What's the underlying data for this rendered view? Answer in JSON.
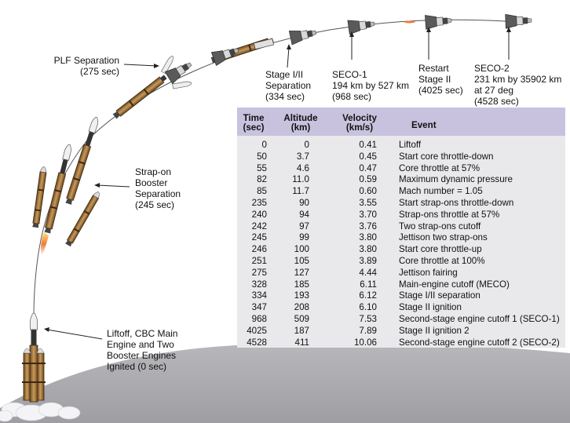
{
  "labels": {
    "plf_separation": [
      "PLF Separation",
      "(275 sec)"
    ],
    "booster_separation": [
      "Strap-on",
      "Booster",
      "Separation",
      "(245 sec)"
    ],
    "liftoff": [
      "Liftoff, CBC Main",
      "Engine and Two",
      "Booster Engines",
      "Ignited (0 sec)"
    ],
    "stage_separation": [
      "Stage I/II",
      "Separation",
      "(334 sec)"
    ],
    "seco1": [
      "SECO-1",
      "194 km by 527 km",
      "(968 sec)"
    ],
    "restart": [
      "Restart",
      "Stage II",
      "(4025 sec)"
    ],
    "seco2": [
      "SECO-2",
      "231 km by 35902 km",
      "at 27 deg",
      "(4528 sec)"
    ]
  },
  "table": {
    "headers": {
      "time": [
        "Time",
        "(sec)"
      ],
      "altitude": [
        "Altitude",
        "(km)"
      ],
      "velocity": [
        "Velocity",
        "(km/s)"
      ],
      "event": [
        "Event"
      ]
    },
    "rows": [
      {
        "time": "0",
        "altitude": "0",
        "velocity": "0.41",
        "event": "Liftoff"
      },
      {
        "time": "50",
        "altitude": "3.7",
        "velocity": "0.45",
        "event": "Start core throttle-down"
      },
      {
        "time": "55",
        "altitude": "4.6",
        "velocity": "0.47",
        "event": "Core throttle at 57%"
      },
      {
        "time": "82",
        "altitude": "11.0",
        "velocity": "0.59",
        "event": "Maximum dynamic pressure"
      },
      {
        "time": "85",
        "altitude": "11.7",
        "velocity": "0.60",
        "event": "Mach number = 1.05"
      },
      {
        "time": "235",
        "altitude": "90",
        "velocity": "3.55",
        "event": "Start strap-ons throttle-down"
      },
      {
        "time": "240",
        "altitude": "94",
        "velocity": "3.70",
        "event": "Strap-ons throttle at 57%"
      },
      {
        "time": "242",
        "altitude": "97",
        "velocity": "3.76",
        "event": "Two strap-ons cutoff"
      },
      {
        "time": "245",
        "altitude": "99",
        "velocity": "3.80",
        "event": "Jettison two strap-ons"
      },
      {
        "time": "246",
        "altitude": "100",
        "velocity": "3.80",
        "event": "Start core throttle-up"
      },
      {
        "time": "251",
        "altitude": "105",
        "velocity": "3.89",
        "event": "Core throttle at 100%"
      },
      {
        "time": "275",
        "altitude": "127",
        "velocity": "4.44",
        "event": "Jettison fairing"
      },
      {
        "time": "328",
        "altitude": "185",
        "velocity": "6.11",
        "event": "Main-engine cutoff (MECO)"
      },
      {
        "time": "334",
        "altitude": "193",
        "velocity": "6.12",
        "event": "Stage I/II separation"
      },
      {
        "time": "347",
        "altitude": "208",
        "velocity": "6.10",
        "event": "Stage II ignition"
      },
      {
        "time": "968",
        "altitude": "509",
        "velocity": "7.53",
        "event": "Second-stage engine cutoff 1 (SECO-1)"
      },
      {
        "time": "4025",
        "altitude": "187",
        "velocity": "7.89",
        "event": "Stage II ignition 2"
      },
      {
        "time": "4528",
        "altitude": "411",
        "velocity": "10.06",
        "event": "Second-stage engine cutoff 2 (SECO-2)"
      }
    ]
  },
  "colors": {
    "earth": "#b4b4b8",
    "trajectory": "#555555",
    "booster_body": "#a8783e",
    "booster_dark": "#3c2812",
    "table_header": "#c9c2de",
    "table_body": "#e9e9ec",
    "flame": "#f07a3a"
  }
}
